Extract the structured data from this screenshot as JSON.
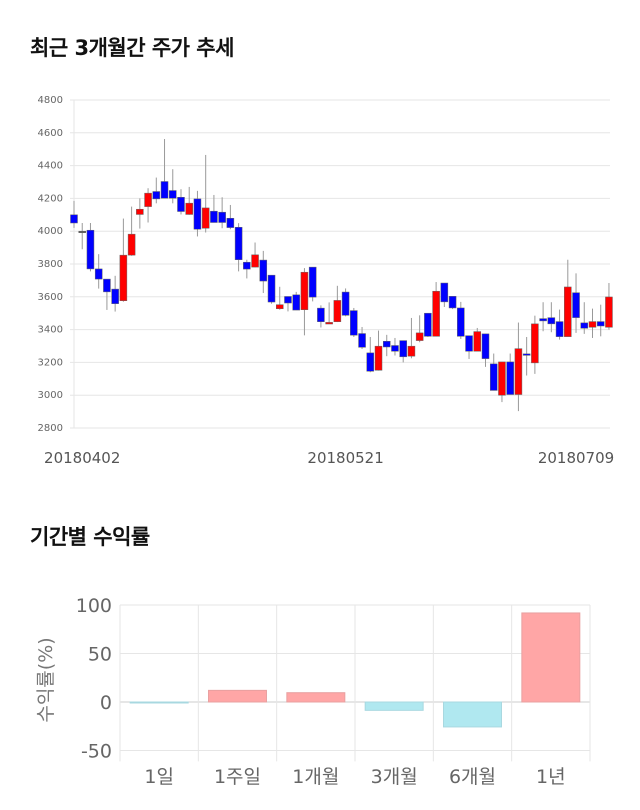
{
  "chart_data": [
    {
      "type": "candlestick",
      "title": "최근 3개월간 주가 추세",
      "ylim": [
        2800,
        4800
      ],
      "yticks": [
        2800,
        3000,
        3200,
        3400,
        3600,
        3800,
        4000,
        4200,
        4400,
        4600,
        4800
      ],
      "xtick_labels": [
        {
          "index": 1,
          "label": "20180402"
        },
        {
          "index": 33,
          "label": "20180521"
        },
        {
          "index": 61,
          "label": "20180709"
        }
      ],
      "grid": true,
      "colors": {
        "up": "#ff0000",
        "down": "#0000ff",
        "wick": "#999999"
      },
      "ohlc": [
        [
          4100,
          4185,
          4020,
          4050
        ],
        [
          4000,
          4050,
          3890,
          4000
        ],
        [
          4006,
          4050,
          3755,
          3770
        ],
        [
          3770,
          3860,
          3650,
          3708
        ],
        [
          3708,
          3708,
          3520,
          3630
        ],
        [
          3647,
          3728,
          3510,
          3558
        ],
        [
          3576,
          4077,
          3570,
          3854
        ],
        [
          3854,
          4150,
          3850,
          3982
        ],
        [
          4102,
          4200,
          4016,
          4134
        ],
        [
          4150,
          4262,
          4053,
          4232
        ],
        [
          4242,
          4327,
          4170,
          4197
        ],
        [
          4303,
          4562,
          4201,
          4201
        ],
        [
          4248,
          4378,
          4170,
          4201
        ],
        [
          4207,
          4256,
          4102,
          4120
        ],
        [
          4102,
          4270,
          4100,
          4171
        ],
        [
          4197,
          4246,
          3968,
          4012
        ],
        [
          4018,
          4465,
          3992,
          4142
        ],
        [
          4122,
          4221,
          4053,
          4053
        ],
        [
          4116,
          4207,
          4018,
          4053
        ],
        [
          4079,
          4160,
          4012,
          4022
        ],
        [
          4024,
          4049,
          3755,
          3826
        ],
        [
          3811,
          3826,
          3712,
          3769
        ],
        [
          3781,
          3931,
          3779,
          3856
        ],
        [
          3824,
          3880,
          3623,
          3696
        ],
        [
          3732,
          3732,
          3558,
          3568
        ],
        [
          3527,
          3661,
          3521,
          3552
        ],
        [
          3602,
          3602,
          3511,
          3562
        ],
        [
          3612,
          3630,
          3519,
          3519
        ],
        [
          3521,
          3775,
          3365,
          3750
        ],
        [
          3781,
          3781,
          3572,
          3598
        ],
        [
          3531,
          3548,
          3413,
          3448
        ],
        [
          3434,
          3566,
          3434,
          3444
        ],
        [
          3448,
          3667,
          3446,
          3578
        ],
        [
          3629,
          3651,
          3481,
          3487
        ],
        [
          3516,
          3532,
          3355,
          3366
        ],
        [
          3376,
          3416,
          3282,
          3292
        ],
        [
          3258,
          3355,
          3140,
          3146
        ],
        [
          3152,
          3394,
          3150,
          3299
        ],
        [
          3329,
          3368,
          3238,
          3294
        ],
        [
          3303,
          3349,
          3242,
          3268
        ],
        [
          3333,
          3333,
          3200,
          3234
        ],
        [
          3238,
          3471,
          3225,
          3299
        ],
        [
          3333,
          3487,
          3323,
          3380
        ],
        [
          3500,
          3500,
          3355,
          3359
        ],
        [
          3359,
          3690,
          3359,
          3634
        ],
        [
          3684,
          3684,
          3538,
          3569
        ],
        [
          3603,
          3603,
          3525,
          3532
        ],
        [
          3532,
          3569,
          3343,
          3359
        ],
        [
          3363,
          3363,
          3221,
          3268
        ],
        [
          3268,
          3410,
          3268,
          3388
        ],
        [
          3374,
          3374,
          3173,
          3223
        ],
        [
          3191,
          3254,
          3029,
          3029
        ],
        [
          3000,
          3203,
          2958,
          3203
        ],
        [
          3203,
          3254,
          3004,
          3004
        ],
        [
          3004,
          3443,
          2903,
          3284
        ],
        [
          3252,
          3355,
          3120,
          3244
        ],
        [
          3197,
          3485,
          3130,
          3435
        ],
        [
          3467,
          3567,
          3390,
          3453
        ],
        [
          3473,
          3567,
          3384,
          3435
        ],
        [
          3449,
          3522,
          3339,
          3357
        ],
        [
          3357,
          3826,
          3357,
          3660
        ],
        [
          3625,
          3743,
          3380,
          3473
        ],
        [
          3441,
          3567,
          3374,
          3408
        ],
        [
          3414,
          3528,
          3349,
          3449
        ],
        [
          3449,
          3552,
          3359,
          3422
        ],
        [
          3414,
          3684,
          3400,
          3599
        ]
      ]
    },
    {
      "type": "bar",
      "title": "기간별 수익률",
      "ylabel": "수익률(%)",
      "ylim": [
        -55,
        100
      ],
      "yticks": [
        -50,
        0,
        50,
        100
      ],
      "categories": [
        "1일",
        "1주일",
        "1개월",
        "3개월",
        "6개월",
        "1년"
      ],
      "values": [
        -0.3,
        12,
        9.6,
        -8.6,
        -25.7,
        91.8
      ],
      "colors": {
        "positive": "#ffa6a6",
        "negative": "#b0e8f0"
      },
      "grid": true
    }
  ]
}
